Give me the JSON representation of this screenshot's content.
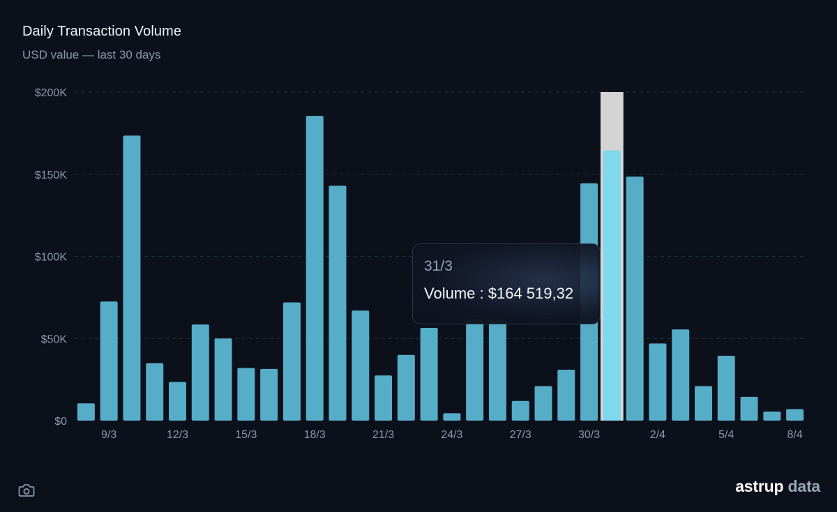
{
  "header": {
    "title": "Daily Transaction Volume",
    "subtitle": "USD value — last 30 days"
  },
  "tooltip": {
    "date": "31/3",
    "value_text": "Volume : $164 519,32"
  },
  "brand": {
    "part1": "astrup",
    "part2": "data"
  },
  "icons": {
    "camera": "camera-icon"
  },
  "colors": {
    "background": "#0c101b",
    "bar": "#56adc8",
    "bar_highlight": "#7fd8ec",
    "cursor": "#d4d4d4",
    "grid": "#27303f",
    "axis_text": "#8d97ab"
  },
  "chart_data": {
    "type": "bar",
    "title": "Daily Transaction Volume",
    "subtitle": "USD value — last 30 days",
    "xlabel": "",
    "ylabel": "",
    "ylim": [
      0,
      200000
    ],
    "y_ticks": [
      0,
      50000,
      100000,
      150000,
      200000
    ],
    "y_tick_labels": [
      "$0",
      "$50K",
      "$100K",
      "$150K",
      "$200K"
    ],
    "categories": [
      "8/3",
      "9/3",
      "10/3",
      "11/3",
      "12/3",
      "13/3",
      "14/3",
      "15/3",
      "16/3",
      "17/3",
      "18/3",
      "19/3",
      "20/3",
      "21/3",
      "22/3",
      "23/3",
      "24/3",
      "25/3",
      "26/3",
      "27/3",
      "28/3",
      "29/3",
      "30/3",
      "31/3",
      "1/4",
      "2/4",
      "3/4",
      "4/4",
      "5/4",
      "6/4",
      "7/4",
      "8/4"
    ],
    "x_tick_labels": [
      "9/3",
      "12/3",
      "15/3",
      "18/3",
      "21/3",
      "24/3",
      "27/3",
      "30/3",
      "2/4",
      "5/4",
      "8/4"
    ],
    "values": [
      10500,
      72500,
      173500,
      35000,
      23500,
      58500,
      50000,
      32000,
      31500,
      72000,
      185500,
      143000,
      67000,
      27500,
      40000,
      56500,
      4500,
      62000,
      62000,
      12000,
      21000,
      31000,
      144500,
      164519.32,
      148500,
      47000,
      55500,
      21000,
      39500,
      14500,
      5500,
      7000
    ],
    "highlighted_category": "31/3",
    "grid": true,
    "legend": "none"
  }
}
